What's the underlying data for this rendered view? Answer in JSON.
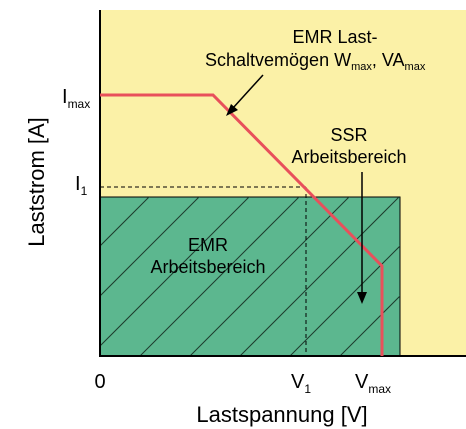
{
  "diagram": {
    "y_axis_label": "Laststrom [A]",
    "x_axis_label": "Lastspannung [V]",
    "tick_origin": "0",
    "tick_v1": {
      "main": "V",
      "sub": "1"
    },
    "tick_vmax": {
      "main": "V",
      "sub": "max"
    },
    "tick_imax": {
      "main": "I",
      "sub": "max"
    },
    "tick_i1": {
      "main": "I",
      "sub": "1"
    },
    "emr_capacity_label": {
      "line1": "EMR Last-",
      "line2_prefix": "Schaltvemögen W",
      "line2_sub1": "max",
      "line2_sep": ", VA",
      "line2_sub2": "max"
    },
    "ssr_label": {
      "line1": "SSR",
      "line2": "Arbeitsbereich"
    },
    "emr_area_label": {
      "line1": "EMR",
      "line2": "Arbeitsbereich"
    },
    "colors": {
      "ssr_area": "#fbf1a7",
      "emr_area": "#5cb78f",
      "limit_line": "#e8505b",
      "axis": "#000000"
    }
  }
}
